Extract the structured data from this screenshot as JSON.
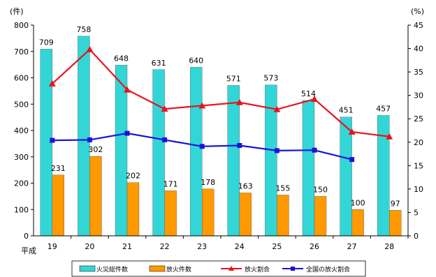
{
  "chart_data": {
    "type": "bar",
    "x_prefix": "平成",
    "categories": [
      "19",
      "20",
      "21",
      "22",
      "23",
      "24",
      "25",
      "26",
      "27",
      "28"
    ],
    "y_left": {
      "unit": "(件)",
      "range": [
        0,
        800
      ],
      "ticks": [
        0,
        100,
        200,
        300,
        400,
        500,
        600,
        700,
        800
      ]
    },
    "y_right": {
      "unit": "(%)",
      "range": [
        0,
        45
      ],
      "ticks": [
        0,
        5,
        10,
        15,
        20,
        25,
        30,
        35,
        40,
        45
      ]
    },
    "grid": false,
    "legend_position": "bottom",
    "series": [
      {
        "name": "火災総件数",
        "kind": "bar",
        "axis": "left",
        "color": "#33d6d6",
        "values": [
          709,
          758,
          648,
          631,
          640,
          571,
          573,
          514,
          451,
          457
        ],
        "labels": [
          "709",
          "758",
          "648",
          "631",
          "640",
          "571",
          "573",
          "514",
          "451",
          "457"
        ]
      },
      {
        "name": "放火件数",
        "kind": "bar",
        "axis": "left",
        "color": "#ff9900",
        "values": [
          231,
          302,
          202,
          171,
          178,
          163,
          155,
          150,
          100,
          97
        ],
        "labels": [
          "231",
          "302",
          "202",
          "171",
          "178",
          "163",
          "155",
          "150",
          "100",
          "97"
        ]
      },
      {
        "name": "放火割合",
        "kind": "line",
        "axis": "right",
        "color": "#e8141c",
        "marker": "triangle",
        "values": [
          32.5,
          39.8,
          31.2,
          27.1,
          27.8,
          28.5,
          27.0,
          29.2,
          22.2,
          21.2
        ]
      },
      {
        "name": "全国の放火割合",
        "kind": "line",
        "axis": "right",
        "color": "#1414dc",
        "marker": "square",
        "values": [
          20.4,
          20.5,
          21.9,
          20.5,
          19.1,
          19.3,
          18.2,
          18.3,
          16.3,
          null
        ]
      }
    ]
  }
}
